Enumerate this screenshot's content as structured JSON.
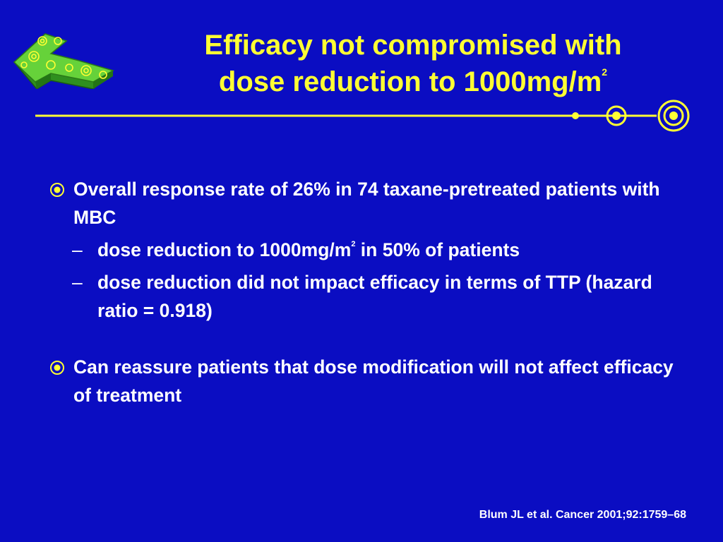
{
  "slide": {
    "title_line1": "Efficacy not compromised with",
    "title_line2_prefix": "dose reduction to 1000mg/m",
    "title_line2_sup": "2",
    "colors": {
      "background": "#0b0dc2",
      "title": "#ffff33",
      "rule": "#ffff33",
      "text": "#ffffff"
    },
    "bullets": [
      {
        "text": "Overall response rate of 26% in 74 taxane-pretreated patients with MBC",
        "sub": [
          {
            "dash": "–",
            "prefix": "dose reduction to 1000mg/m",
            "sup": "2",
            "suffix": " in 50% of patients"
          },
          {
            "dash": "–",
            "text": "dose reduction did not impact efficacy in terms of TTP (hazard ratio = 0.918)"
          }
        ]
      },
      {
        "text": "Can reassure patients that dose modification will not affect efficacy of treatment"
      }
    ],
    "citation": "Blum JL et al. Cancer 2001;92:1759–68",
    "icons": {
      "logo": "green-block-logo-icon",
      "bullet": "target-bullet-icon"
    }
  }
}
